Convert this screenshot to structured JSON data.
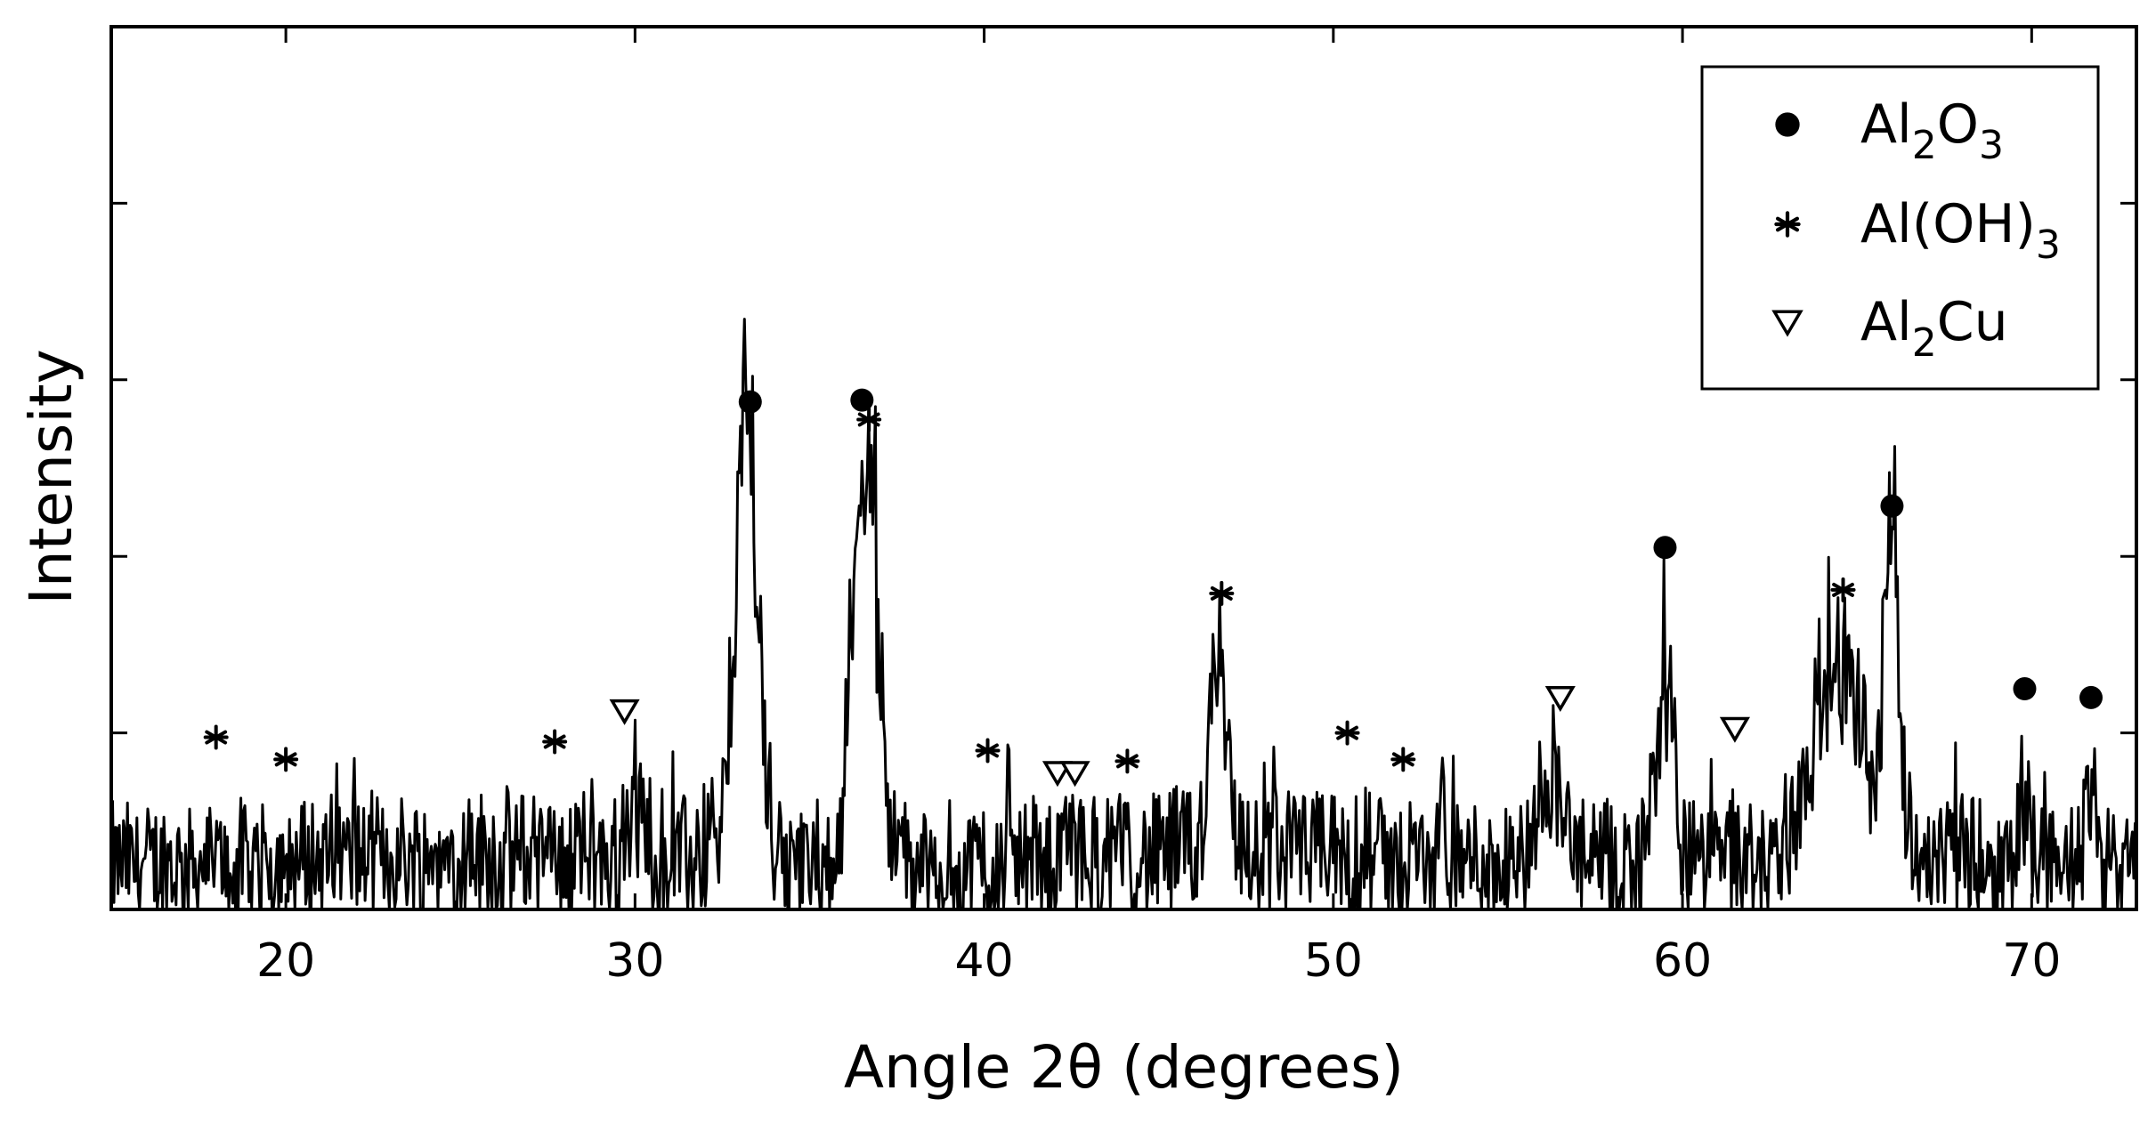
{
  "chart_data": {
    "type": "line",
    "xlabel": "Angle 2θ (degrees)",
    "ylabel": "Intensity",
    "xlim": [
      15,
      73
    ],
    "ylim": [
      0,
      1.0
    ],
    "x_ticks": [
      20,
      30,
      40,
      50,
      60,
      70
    ],
    "y_ticks": [
      0.2,
      0.4,
      0.6,
      0.8
    ],
    "grid": false,
    "legend_position": "top-right",
    "legend": [
      {
        "marker": "circle",
        "label": "Al",
        "sub1": "2",
        "label2": "O",
        "sub2": "3"
      },
      {
        "marker": "asterisk",
        "label": "Al(OH)",
        "sub1": "3",
        "label2": "",
        "sub2": ""
      },
      {
        "marker": "triangle-down",
        "label": "Al",
        "sub1": "2",
        "label2": "Cu",
        "sub2": ""
      }
    ],
    "base_noise": 0.055,
    "peaks": [
      {
        "x": 33.2,
        "height": 0.51,
        "width": 0.45
      },
      {
        "x": 36.6,
        "height": 0.49,
        "width": 0.5
      },
      {
        "x": 46.7,
        "height": 0.24,
        "width": 0.35
      },
      {
        "x": 59.5,
        "height": 0.21,
        "width": 0.35
      },
      {
        "x": 64.4,
        "height": 0.22,
        "width": 1.0
      },
      {
        "x": 66.0,
        "height": 0.36,
        "width": 0.3
      },
      {
        "x": 56.2,
        "height": 0.1,
        "width": 0.5
      },
      {
        "x": 30.1,
        "height": 0.05,
        "width": 0.4
      },
      {
        "x": 69.8,
        "height": 0.08,
        "width": 0.2
      },
      {
        "x": 71.7,
        "height": 0.09,
        "width": 0.2
      }
    ],
    "annotations": [
      {
        "marker": "asterisk",
        "x": 18.0,
        "y": 0.195
      },
      {
        "marker": "asterisk",
        "x": 20.0,
        "y": 0.17
      },
      {
        "marker": "asterisk",
        "x": 27.7,
        "y": 0.19
      },
      {
        "marker": "triangle-down",
        "x": 29.7,
        "y": 0.225
      },
      {
        "marker": "circle",
        "x": 33.3,
        "y": 0.575
      },
      {
        "marker": "circle",
        "x": 36.5,
        "y": 0.577
      },
      {
        "marker": "asterisk",
        "x": 36.7,
        "y": 0.555
      },
      {
        "marker": "asterisk",
        "x": 40.1,
        "y": 0.18
      },
      {
        "marker": "triangle-down",
        "x": 42.1,
        "y": 0.155
      },
      {
        "marker": "triangle-down",
        "x": 42.6,
        "y": 0.155
      },
      {
        "marker": "asterisk",
        "x": 44.1,
        "y": 0.168
      },
      {
        "marker": "asterisk",
        "x": 46.8,
        "y": 0.358
      },
      {
        "marker": "asterisk",
        "x": 50.4,
        "y": 0.2
      },
      {
        "marker": "asterisk",
        "x": 52.0,
        "y": 0.17
      },
      {
        "marker": "triangle-down",
        "x": 56.5,
        "y": 0.24
      },
      {
        "marker": "circle",
        "x": 59.5,
        "y": 0.41
      },
      {
        "marker": "triangle-down",
        "x": 61.5,
        "y": 0.205
      },
      {
        "marker": "asterisk",
        "x": 64.6,
        "y": 0.362
      },
      {
        "marker": "circle",
        "x": 66.0,
        "y": 0.457
      },
      {
        "marker": "circle",
        "x": 69.8,
        "y": 0.25
      },
      {
        "marker": "circle",
        "x": 71.7,
        "y": 0.24
      }
    ],
    "colors": {
      "line": "#000000",
      "frame": "#000000",
      "background": "#ffffff"
    }
  }
}
